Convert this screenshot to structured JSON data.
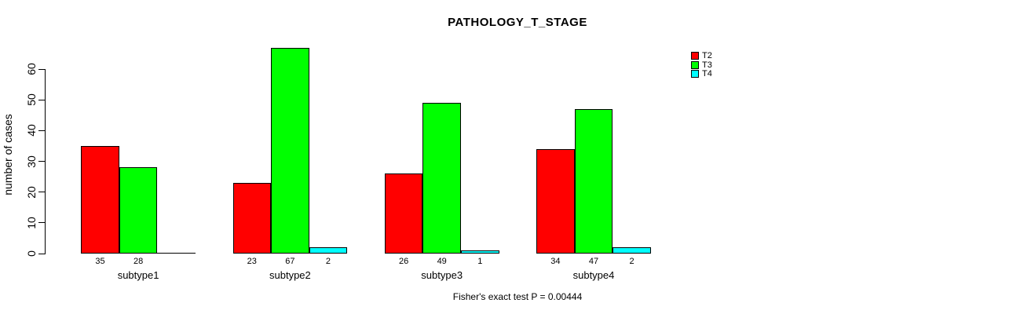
{
  "chart_data": {
    "type": "bar",
    "title": "PATHOLOGY_T_STAGE",
    "ylabel": "number of cases",
    "xlabel": "",
    "footnote": "Fisher's exact test P = 0.00444",
    "categories": [
      "subtype1",
      "subtype2",
      "subtype3",
      "subtype4"
    ],
    "series": [
      {
        "name": "T2",
        "color": "#FF0000",
        "values": [
          35,
          23,
          26,
          34
        ]
      },
      {
        "name": "T3",
        "color": "#00FF00",
        "values": [
          28,
          67,
          49,
          47
        ]
      },
      {
        "name": "T4",
        "color": "#00FFFF",
        "values": [
          0,
          2,
          1,
          2
        ]
      }
    ],
    "bar_value_labels": [
      [
        "35",
        "28",
        ""
      ],
      [
        "23",
        "67",
        "2"
      ],
      [
        "26",
        "49",
        "1"
      ],
      [
        "34",
        "47",
        "2"
      ]
    ],
    "yticks": [
      0,
      10,
      20,
      30,
      40,
      50,
      60
    ],
    "ylim": [
      0,
      67
    ],
    "grid": false,
    "legend_position": "top-right",
    "axis_color": "#000000",
    "background": "#FFFFFF"
  }
}
